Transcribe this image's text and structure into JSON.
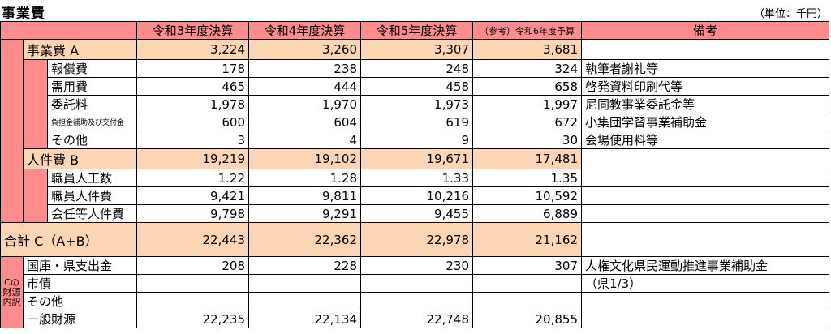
{
  "title": "事業費",
  "unit": "（単位：千円）",
  "columns": [
    "令和3年度決算",
    "令和4年度決算",
    "令和5年度決算",
    "（参考）令和6年度予算",
    "備考"
  ],
  "rows": [
    {
      "label": "事業費 A",
      "values": [
        "3,224",
        "3,260",
        "3,307",
        "3,681"
      ],
      "note": ""
    },
    {
      "label": "報償費",
      "values": [
        "178",
        "238",
        "248",
        "324"
      ],
      "note": "執筆者謝礼等"
    },
    {
      "label": "需用費",
      "values": [
        "465",
        "444",
        "458",
        "658"
      ],
      "note": "啓発資料印刷代等"
    },
    {
      "label": "委託料",
      "values": [
        "1,978",
        "1,970",
        "1,973",
        "1,997"
      ],
      "note": "尼同教事業委託金等"
    },
    {
      "label": "負担金補助及び交付金",
      "values": [
        "600",
        "604",
        "619",
        "672"
      ],
      "note": "小集団学習事業補助金"
    },
    {
      "label": "その他",
      "values": [
        "3",
        "4",
        "9",
        "30"
      ],
      "note": "会場使用料等"
    },
    {
      "label": "人件費 B",
      "values": [
        "19,219",
        "19,102",
        "19,671",
        "17,481"
      ],
      "note": ""
    },
    {
      "label": "職員人工数",
      "values": [
        "1.22",
        "1.28",
        "1.33",
        "1.35"
      ],
      "note": ""
    },
    {
      "label": "職員人件費",
      "values": [
        "9,421",
        "9,811",
        "10,216",
        "10,592"
      ],
      "note": ""
    },
    {
      "label": "会任等人件費",
      "values": [
        "9,798",
        "9,291",
        "9,455",
        "6,889"
      ],
      "note": ""
    },
    {
      "label": "合計 C（A+B）",
      "values": [
        "22,443",
        "22,362",
        "22,978",
        "21,162"
      ],
      "note": ""
    },
    {
      "label": "国庫・県支出金",
      "values": [
        "208",
        "228",
        "230",
        "307"
      ],
      "note": "人権文化県民運動推進事業補助金"
    },
    {
      "label": "市債",
      "values": [
        "",
        "",
        "",
        ""
      ],
      "note": "（県1/3）"
    },
    {
      "label": "その他",
      "values": [
        "",
        "",
        "",
        ""
      ],
      "note": ""
    },
    {
      "label": "一般財源",
      "values": [
        "22,235",
        "22,134",
        "22,748",
        "20,855"
      ],
      "note": ""
    }
  ],
  "source_side_label": "Cの財源内訳"
}
